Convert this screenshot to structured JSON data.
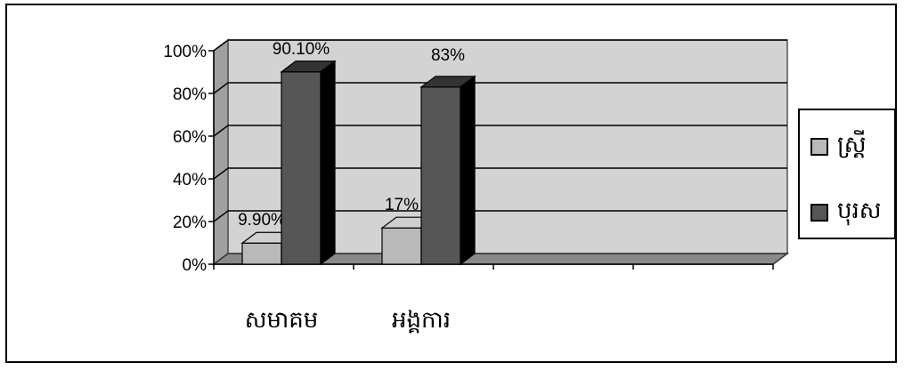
{
  "chart_data": {
    "type": "bar",
    "categories": [
      "សមាគម",
      "អង្គការ"
    ],
    "series": [
      {
        "name": "ស្ត្រី",
        "values": [
          9.9,
          17
        ],
        "labels": [
          "9.90%",
          "17%"
        ],
        "color": "#b9b9b9"
      },
      {
        "name": "បុរស",
        "values": [
          90.1,
          83
        ],
        "labels": [
          "90.10%",
          "83%"
        ],
        "color": "#565656"
      }
    ],
    "yticks": [
      "0%",
      "20%",
      "40%",
      "60%",
      "80%",
      "100%"
    ],
    "ylim": [
      0,
      100
    ],
    "grid": true,
    "legend": "right",
    "title": "",
    "xlabel": "",
    "ylabel": "",
    "plot_color": "#d3d3d3"
  }
}
